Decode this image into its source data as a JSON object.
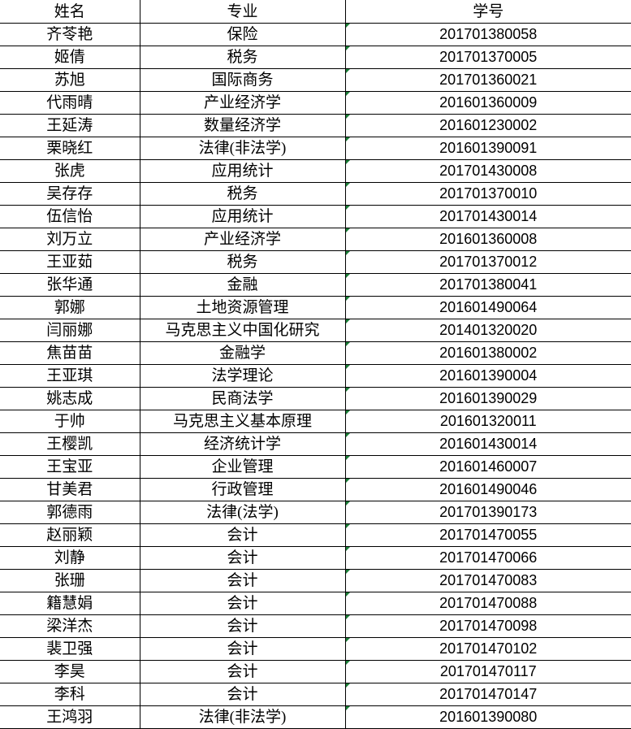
{
  "table": {
    "header": [
      "姓名",
      "专业",
      "学号"
    ],
    "rows": [
      [
        "齐苓艳",
        "保险",
        "201701380058"
      ],
      [
        "姬倩",
        "税务",
        "201701370005"
      ],
      [
        "苏旭",
        "国际商务",
        "201701360021"
      ],
      [
        "代雨晴",
        "产业经济学",
        "201601360009"
      ],
      [
        "王延涛",
        "数量经济学",
        "201601230002"
      ],
      [
        "栗晓红",
        "法律(非法学)",
        "201601390091"
      ],
      [
        "张虎",
        "应用统计",
        "201701430008"
      ],
      [
        "吴存存",
        "税务",
        "201701370010"
      ],
      [
        "伍信怡",
        "应用统计",
        "201701430014"
      ],
      [
        "刘万立",
        "产业经济学",
        "201601360008"
      ],
      [
        "王亚茹",
        "税务",
        "201701370012"
      ],
      [
        "张华通",
        "金融",
        "201701380041"
      ],
      [
        "郭娜",
        "土地资源管理",
        "201601490064"
      ],
      [
        "闫丽娜",
        "马克思主义中国化研究",
        "201401320020"
      ],
      [
        "焦苗苗",
        "金融学",
        "201601380002"
      ],
      [
        "王亚琪",
        "法学理论",
        "201601390004"
      ],
      [
        "姚志成",
        "民商法学",
        "201601390029"
      ],
      [
        "于帅",
        "马克思主义基本原理",
        "201601320011"
      ],
      [
        "王樱凯",
        "经济统计学",
        "201601430014"
      ],
      [
        "王宝亚",
        "企业管理",
        "201601460007"
      ],
      [
        "甘美君",
        "行政管理",
        "201601490046"
      ],
      [
        "郭德雨",
        "法律(法学)",
        "201701390173"
      ],
      [
        "赵丽颖",
        "会计",
        "201701470055"
      ],
      [
        "刘静",
        "会计",
        "201701470066"
      ],
      [
        "张珊",
        "会计",
        "201701470083"
      ],
      [
        "籍慧娟",
        "会计",
        "201701470088"
      ],
      [
        "梁洋杰",
        "会计",
        "201701470098"
      ],
      [
        "裴卫强",
        "会计",
        "201701470102"
      ],
      [
        "李昊",
        "会计",
        "201701470117"
      ],
      [
        "李科",
        "会计",
        "201701470147"
      ],
      [
        "王鸿羽",
        "法律(非法学)",
        "201601390080"
      ]
    ]
  }
}
